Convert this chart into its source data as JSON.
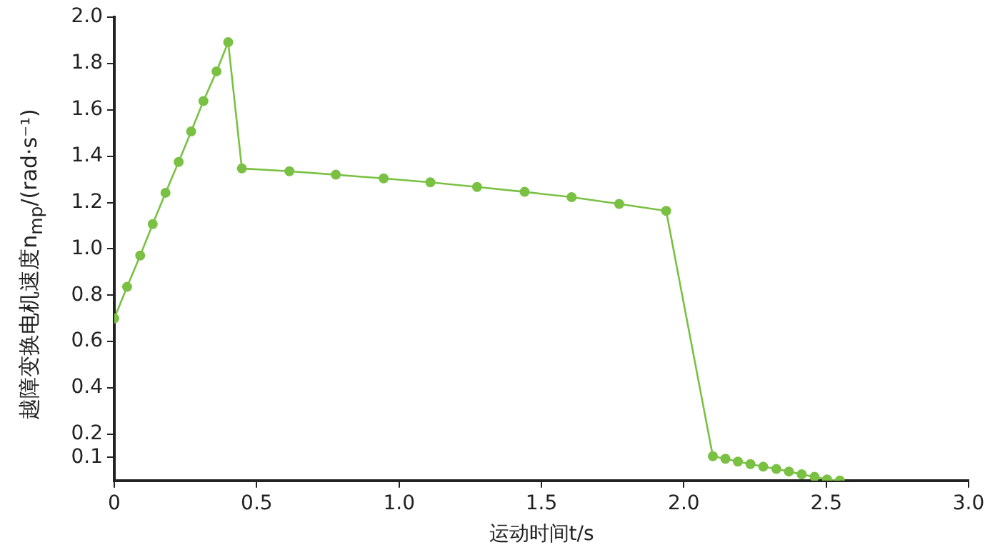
{
  "chart_data": {
    "type": "line",
    "xlabel": "运动时间t/s",
    "ylabel": "越障变换电机速度n$_{mp}$/(rad·s⁻¹)",
    "x": [
      0,
      0.045,
      0.091,
      0.135,
      0.18,
      0.226,
      0.27,
      0.313,
      0.359,
      0.4,
      0.448,
      0.615,
      0.778,
      0.946,
      1.11,
      1.274,
      1.441,
      1.606,
      1.773,
      1.938,
      2.102,
      2.146,
      2.19,
      2.234,
      2.279,
      2.325,
      2.369,
      2.414,
      2.459,
      2.503,
      2.548
    ],
    "series": [
      {
        "color": "#7ac143",
        "values": [
          0.7,
          0.836,
          0.971,
          1.107,
          1.242,
          1.375,
          1.507,
          1.638,
          1.766,
          1.892,
          1.347,
          1.335,
          1.32,
          1.304,
          1.287,
          1.267,
          1.246,
          1.223,
          1.194,
          1.164,
          0.105,
          0.094,
          0.082,
          0.071,
          0.06,
          0.05,
          0.039,
          0.027,
          0.016,
          0.005,
          0
        ]
      }
    ],
    "xlim": [
      0,
      3.0
    ],
    "xticks": [
      0,
      {
        "value": 0.5,
        "label": "0.5"
      },
      {
        "value": 1,
        "label": "1.0"
      },
      {
        "value": 1.5,
        "label": "1.5"
      },
      {
        "value": 2,
        "label": "2.0"
      },
      {
        "value": 2.5,
        "label": "2.5"
      },
      {
        "value": 3,
        "label": "3.0"
      }
    ],
    "ylim": [
      0,
      2.0
    ],
    "yticks": [
      0.1,
      {
        "value": 0.2,
        "label": "0.2"
      },
      {
        "value": 0.4,
        "label": "0.4"
      },
      {
        "value": 0.6,
        "label": "0.6"
      },
      {
        "value": 0.8,
        "label": "0.8"
      },
      {
        "value": 1,
        "label": "1.0"
      },
      {
        "value": 1.2,
        "label": "1.2"
      },
      {
        "value": 1.4,
        "label": "1.4"
      },
      {
        "value": 1.6,
        "label": "1.6"
      },
      {
        "value": 1.8,
        "label": "1.8"
      },
      {
        "value": 2,
        "label": "2.0"
      }
    ],
    "grid": false,
    "legend": false,
    "marker": "circle",
    "line_style": "solid"
  }
}
